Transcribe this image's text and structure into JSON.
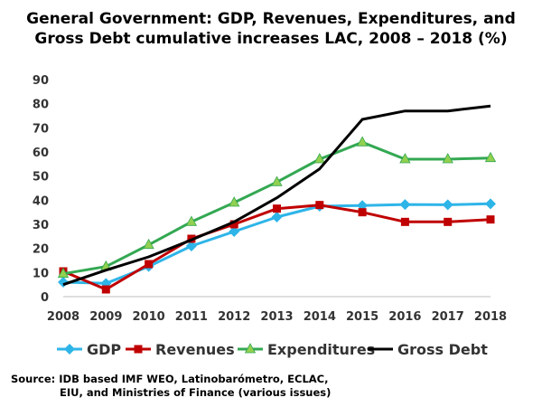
{
  "chart_data": {
    "type": "line",
    "title_lines": [
      "General Government: GDP, Revenues, Expenditures, and",
      "Gross Debt cumulative increases  LAC, 2008 – 2018 (%)"
    ],
    "xlabel": "",
    "ylabel": "",
    "x": [
      "2008",
      "2009",
      "2010",
      "2011",
      "2012",
      "2013",
      "2014",
      "2015",
      "2016",
      "2017",
      "2018"
    ],
    "ylim": [
      0,
      90
    ],
    "yticks": [
      0,
      10,
      20,
      30,
      40,
      50,
      60,
      70,
      80,
      90
    ],
    "grid": false,
    "legend_position": "bottom",
    "series": [
      {
        "name": "GDP",
        "color": "#2eb5e8",
        "marker": "diamond",
        "values": [
          6,
          5.5,
          12.5,
          21,
          27,
          33,
          37.5,
          37.8,
          38.2,
          38.1,
          38.5
        ]
      },
      {
        "name": "Revenues",
        "color": "#c00000",
        "marker": "square",
        "values": [
          10.5,
          3,
          13.5,
          24,
          30,
          36.5,
          38,
          35,
          31,
          31,
          32
        ]
      },
      {
        "name": "Expenditures",
        "color": "#33a852",
        "marker": "triangle",
        "marker_fill": "#92d050",
        "values": [
          9.5,
          12.5,
          21.5,
          31,
          39,
          47.5,
          57,
          64,
          57,
          57,
          57.5
        ]
      },
      {
        "name": "Gross Debt",
        "color": "#000000",
        "marker": "none",
        "values": [
          5,
          11,
          16.5,
          23.5,
          31,
          41,
          53,
          73.5,
          77,
          77,
          79
        ]
      }
    ]
  },
  "source": {
    "line1": "Source: IDB based IMF WEO, Latinobarómetro, ECLAC,",
    "line2": "EIU, and Ministries of Finance (various issues)"
  }
}
